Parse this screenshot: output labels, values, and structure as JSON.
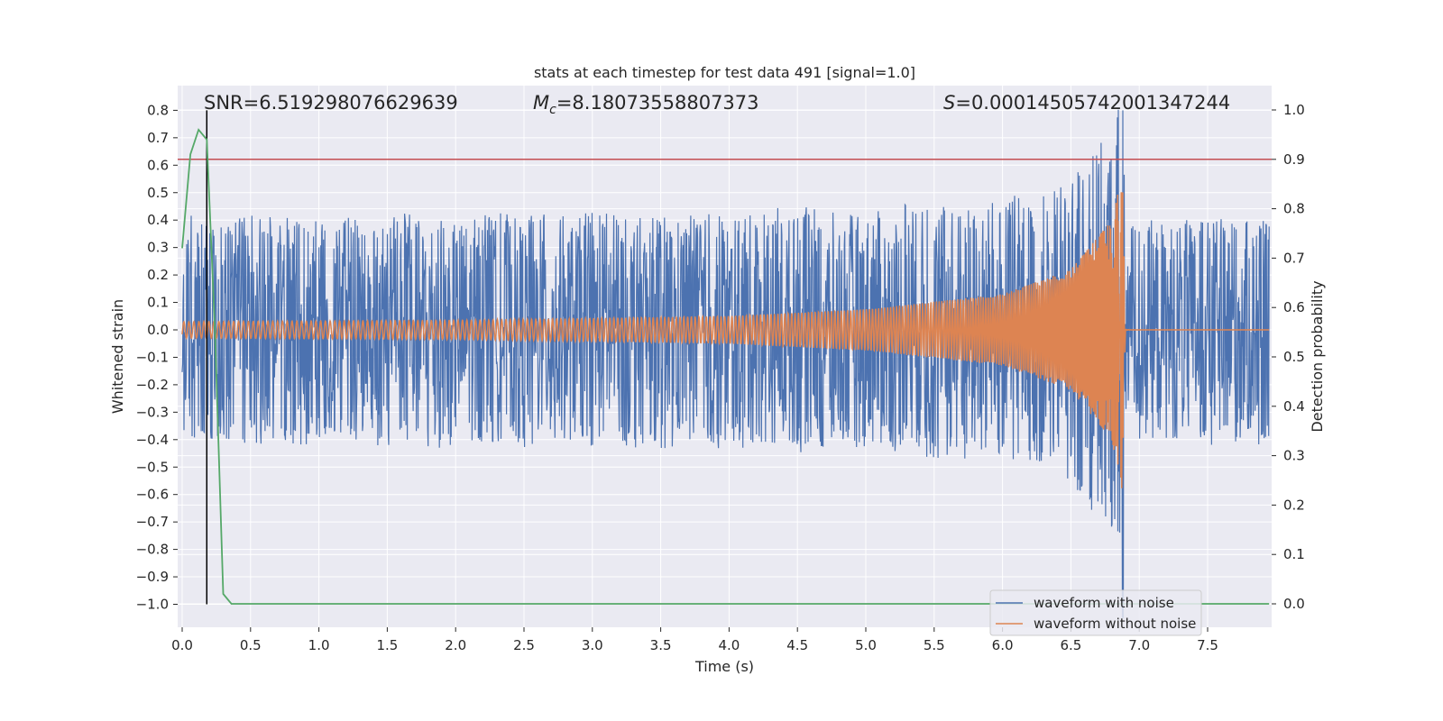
{
  "chart_data": {
    "type": "line",
    "title": "stats at each timestep for test data 491 [signal=1.0]",
    "xlabel": "Time (s)",
    "ylabel_left": "Whitened strain",
    "ylabel_right": "Detection probability",
    "xlim": [
      0.0,
      8.0
    ],
    "ylim_left": [
      -1.08,
      0.88
    ],
    "ylim_right": [
      -0.045,
      1.03
    ],
    "grid": true,
    "x_ticks": [
      "0.0",
      "0.5",
      "1.0",
      "1.5",
      "2.0",
      "2.5",
      "3.0",
      "3.5",
      "4.0",
      "4.5",
      "5.0",
      "5.5",
      "6.0",
      "6.5",
      "7.0",
      "7.5"
    ],
    "y_ticks_left": [
      "0.8",
      "0.7",
      "0.6",
      "0.5",
      "0.4",
      "0.3",
      "0.2",
      "0.1",
      "0.0",
      "−0.1",
      "−0.2",
      "−0.3",
      "−0.4",
      "−0.5",
      "−0.6",
      "−0.7",
      "−0.8",
      "−0.9",
      "−1.0"
    ],
    "y_ticks_right": [
      "1.0",
      "0.9",
      "0.8",
      "0.7",
      "0.6",
      "0.5",
      "0.4",
      "0.3",
      "0.2",
      "0.1",
      "0.0"
    ],
    "annotations": {
      "snr": "SNR=6.519298076629639",
      "mc_symbol": "M",
      "mc_sub": "c",
      "mc_value": "=8.18073558807373",
      "s_symbol": "S",
      "s_value": "=0.00014505742001347244"
    },
    "detection_threshold": 0.9,
    "detection_time_marker": 0.18,
    "merger_time": 6.88,
    "series": [
      {
        "name": "waveform with noise",
        "color": "#4c72b0",
        "axis": "left",
        "description": "noise envelope ~ +/-0.4 with spikes near merger",
        "envelope_points": [
          {
            "t": 0.0,
            "amp": 0.4
          },
          {
            "t": 1.0,
            "amp": 0.4
          },
          {
            "t": 2.0,
            "amp": 0.41
          },
          {
            "t": 3.0,
            "amp": 0.41
          },
          {
            "t": 4.0,
            "amp": 0.42
          },
          {
            "t": 5.0,
            "amp": 0.43
          },
          {
            "t": 6.0,
            "amp": 0.46
          },
          {
            "t": 6.5,
            "amp": 0.52
          },
          {
            "t": 6.8,
            "amp": 0.75
          },
          {
            "t": 6.88,
            "amp": 0.8
          },
          {
            "t": 6.9,
            "amp": 0.4
          },
          {
            "t": 8.0,
            "amp": 0.4
          }
        ]
      },
      {
        "name": "waveform without noise",
        "color": "#dd8452",
        "axis": "left",
        "envelope_points": [
          {
            "t": 0.0,
            "amp": 0.03
          },
          {
            "t": 2.0,
            "amp": 0.035
          },
          {
            "t": 4.0,
            "amp": 0.05
          },
          {
            "t": 5.0,
            "amp": 0.075
          },
          {
            "t": 6.0,
            "amp": 0.13
          },
          {
            "t": 6.5,
            "amp": 0.22
          },
          {
            "t": 6.8,
            "amp": 0.4
          },
          {
            "t": 6.88,
            "amp": 0.6
          },
          {
            "t": 6.9,
            "amp": 0.005
          },
          {
            "t": 8.0,
            "amp": 0.0
          }
        ]
      },
      {
        "name": "detection probability",
        "color": "#55a868",
        "axis": "right",
        "x": [
          0.0,
          0.06,
          0.12,
          0.18,
          0.24,
          0.3,
          0.36,
          0.42,
          1.0,
          2.0,
          3.0,
          4.0,
          5.0,
          6.0,
          7.0,
          7.95
        ],
        "y": [
          0.72,
          0.91,
          0.96,
          0.94,
          0.55,
          0.02,
          0.0,
          0.0,
          0.0,
          0.0,
          0.0,
          0.0,
          0.0,
          0.0,
          0.0,
          0.0
        ]
      }
    ],
    "legend": {
      "placement": "lower-right",
      "entries": [
        {
          "label": "waveform with noise",
          "color": "#4c72b0"
        },
        {
          "label": "waveform without noise",
          "color": "#dd8452"
        }
      ]
    },
    "colors": {
      "axes_bg": "#eaeaf2",
      "grid": "#ffffff",
      "threshold_line": "#c44e52",
      "marker_line": "#000000"
    }
  }
}
